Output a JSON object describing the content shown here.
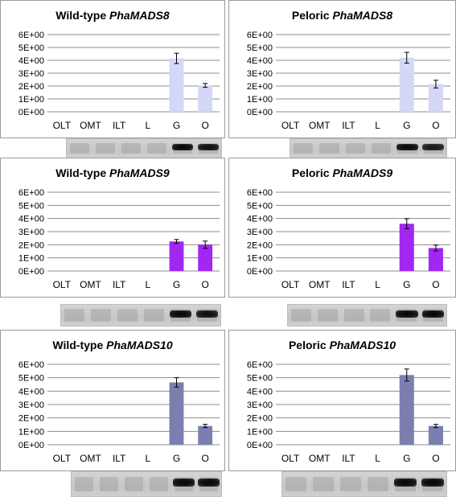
{
  "chart_data": [
    {
      "type": "bar",
      "title_prefix": "Wild-type",
      "title_gene": "PhaMADS8",
      "categories": [
        "OLT",
        "OMT",
        "ILT",
        "L",
        "G",
        "O"
      ],
      "values": [
        0,
        0,
        0,
        0,
        4.15,
        2.05
      ],
      "errors": [
        0,
        0,
        0,
        0,
        0.4,
        0.15
      ],
      "yticks": [
        "0E+00",
        "1E+00",
        "2E+00",
        "3E+00",
        "4E+00",
        "5E+00",
        "6E+00"
      ],
      "ylim": [
        0,
        6
      ],
      "color": "#d4d8f6",
      "grid": true
    },
    {
      "type": "bar",
      "title_prefix": "Peloric",
      "title_gene": "PhaMADS8",
      "categories": [
        "OLT",
        "OMT",
        "ILT",
        "L",
        "G",
        "O"
      ],
      "values": [
        0,
        0,
        0,
        0,
        4.2,
        2.15
      ],
      "errors": [
        0,
        0,
        0,
        0,
        0.42,
        0.3
      ],
      "yticks": [
        "0E+00",
        "1E+00",
        "2E+00",
        "3E+00",
        "4E+00",
        "5E+00",
        "6E+00"
      ],
      "ylim": [
        0,
        6
      ],
      "color": "#d4d8f6",
      "grid": true
    },
    {
      "type": "bar",
      "title_prefix": "Wild-type",
      "title_gene": "PhaMADS9",
      "categories": [
        "OLT",
        "OMT",
        "ILT",
        "L",
        "G",
        "O"
      ],
      "values": [
        0,
        0,
        0,
        0,
        2.25,
        2.0
      ],
      "errors": [
        0,
        0,
        0,
        0,
        0.15,
        0.28
      ],
      "yticks": [
        "0E+00",
        "1E+00",
        "2E+00",
        "3E+00",
        "4E+00",
        "5E+00",
        "6E+00"
      ],
      "ylim": [
        0,
        6
      ],
      "color": "#a128f0",
      "grid": true
    },
    {
      "type": "bar",
      "title_prefix": "Peloric",
      "title_gene": "PhaMADS9",
      "categories": [
        "OLT",
        "OMT",
        "ILT",
        "L",
        "G",
        "O"
      ],
      "values": [
        0,
        0,
        0,
        0,
        3.6,
        1.75
      ],
      "errors": [
        0,
        0,
        0,
        0,
        0.38,
        0.22
      ],
      "yticks": [
        "0E+00",
        "1E+00",
        "2E+00",
        "3E+00",
        "4E+00",
        "5E+00",
        "6E+00"
      ],
      "ylim": [
        0,
        6
      ],
      "color": "#a128f0",
      "grid": true
    },
    {
      "type": "bar",
      "title_prefix": "Wild-type",
      "title_gene": "PhaMADS10",
      "categories": [
        "OLT",
        "OMT",
        "ILT",
        "L",
        "G",
        "O"
      ],
      "values": [
        0,
        0,
        0,
        0,
        4.65,
        1.4
      ],
      "errors": [
        0,
        0,
        0,
        0,
        0.35,
        0.12
      ],
      "yticks": [
        "0E+00",
        "1E+00",
        "2E+00",
        "3E+00",
        "4E+00",
        "5E+00",
        "6E+00"
      ],
      "ylim": [
        0,
        6
      ],
      "color": "#7b7fb0",
      "grid": true
    },
    {
      "type": "bar",
      "title_prefix": "Peloric",
      "title_gene": "PhaMADS10",
      "categories": [
        "OLT",
        "OMT",
        "ILT",
        "L",
        "G",
        "O"
      ],
      "values": [
        0,
        0,
        0,
        0,
        5.2,
        1.4
      ],
      "errors": [
        0,
        0,
        0,
        0,
        0.45,
        0.12
      ],
      "yticks": [
        "0E+00",
        "1E+00",
        "2E+00",
        "3E+00",
        "4E+00",
        "5E+00",
        "6E+00"
      ],
      "ylim": [
        0,
        6
      ],
      "color": "#7b7fb0",
      "grid": true
    }
  ],
  "gels": [
    {
      "bands": [
        0,
        0,
        0,
        0,
        1,
        1
      ],
      "band_strength": [
        0,
        0,
        0,
        0,
        1,
        0.95
      ]
    },
    {
      "bands": [
        0,
        0,
        0,
        0,
        1,
        1
      ],
      "band_strength": [
        0,
        0,
        0,
        0,
        1,
        0.9
      ]
    },
    {
      "bands": [
        0,
        0,
        0,
        0,
        1,
        1
      ],
      "band_strength": [
        0,
        0,
        0,
        0,
        1,
        0.95
      ]
    },
    {
      "bands": [
        0,
        0,
        0,
        0,
        1,
        1
      ],
      "band_strength": [
        0,
        0,
        0,
        0,
        1,
        1
      ]
    },
    {
      "bands": [
        0,
        0,
        0,
        0,
        1,
        1
      ],
      "band_strength": [
        0,
        0,
        0,
        0,
        1,
        1
      ]
    },
    {
      "bands": [
        0,
        0,
        0,
        0,
        1,
        1
      ],
      "band_strength": [
        0,
        0,
        0,
        0,
        1,
        1
      ]
    }
  ]
}
